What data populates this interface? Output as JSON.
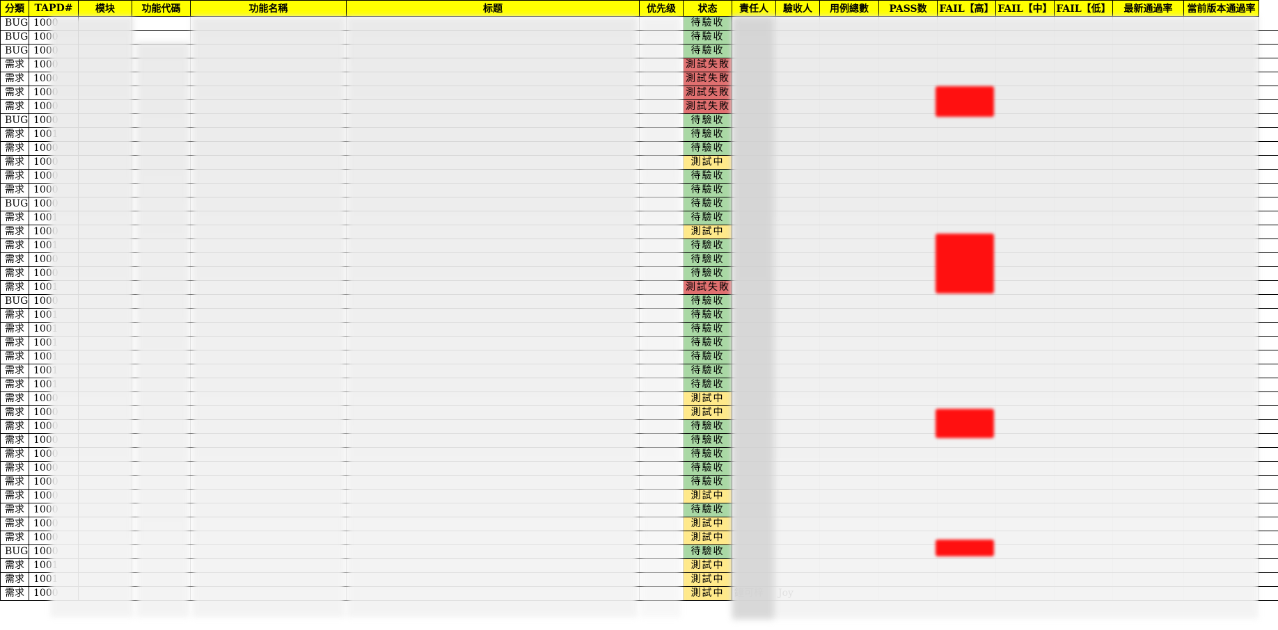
{
  "headers": [
    "分類",
    "TAPD#",
    "模块",
    "功能代碼",
    "功能名稱",
    "标题",
    "优先级",
    "状态",
    "責任人",
    "驗收人",
    "用例總數",
    "PASS数",
    "FAIL【高】",
    "FAIL【中】",
    "FAIL【低】",
    "最新通過率",
    "當前版本通過率"
  ],
  "status_labels": {
    "pending": "待驗收",
    "failed": "測試失敗",
    "testing": "測試中"
  },
  "colors": {
    "header_bg": "#ffff00",
    "pending_bg": "#a9d8a4",
    "failed_bg": "#e07070",
    "testing_bg": "#ffe98a",
    "fail_high_mark": "#ff1010"
  },
  "rows": [
    {
      "cat": "BUG",
      "tapd": "1000",
      "status": "待驗收",
      "s": "pend"
    },
    {
      "cat": "BUG",
      "tapd": "1000",
      "status": "待驗收",
      "s": "pend"
    },
    {
      "cat": "BUG",
      "tapd": "1000",
      "status": "待驗收",
      "s": "pend"
    },
    {
      "cat": "需求",
      "tapd": "1000",
      "status": "測試失敗",
      "s": "fail"
    },
    {
      "cat": "需求",
      "tapd": "1000",
      "status": "測試失敗",
      "s": "fail"
    },
    {
      "cat": "需求",
      "tapd": "1000",
      "status": "測試失敗",
      "s": "fail"
    },
    {
      "cat": "需求",
      "tapd": "1000",
      "status": "測試失敗",
      "s": "fail"
    },
    {
      "cat": "BUG",
      "tapd": "1000",
      "status": "待驗收",
      "s": "pend"
    },
    {
      "cat": "需求",
      "tapd": "1001",
      "status": "待驗收",
      "s": "pend"
    },
    {
      "cat": "需求",
      "tapd": "1000",
      "status": "待驗收",
      "s": "pend"
    },
    {
      "cat": "需求",
      "tapd": "1000",
      "status": "測試中",
      "s": "test"
    },
    {
      "cat": "需求",
      "tapd": "1000",
      "status": "待驗收",
      "s": "pend"
    },
    {
      "cat": "需求",
      "tapd": "1000",
      "status": "待驗收",
      "s": "pend"
    },
    {
      "cat": "BUG",
      "tapd": "1000",
      "status": "待驗收",
      "s": "pend"
    },
    {
      "cat": "需求",
      "tapd": "1001",
      "status": "待驗收",
      "s": "pend"
    },
    {
      "cat": "需求",
      "tapd": "1000",
      "status": "測試中",
      "s": "test"
    },
    {
      "cat": "需求",
      "tapd": "1001",
      "status": "待驗收",
      "s": "pend"
    },
    {
      "cat": "需求",
      "tapd": "1000",
      "status": "待驗收",
      "s": "pend"
    },
    {
      "cat": "需求",
      "tapd": "1000",
      "status": "待驗收",
      "s": "pend"
    },
    {
      "cat": "需求",
      "tapd": "1001",
      "status": "測試失敗",
      "s": "fail"
    },
    {
      "cat": "BUG",
      "tapd": "1000",
      "status": "待驗收",
      "s": "pend"
    },
    {
      "cat": "需求",
      "tapd": "1001",
      "status": "待驗收",
      "s": "pend"
    },
    {
      "cat": "需求",
      "tapd": "1001",
      "status": "待驗收",
      "s": "pend"
    },
    {
      "cat": "需求",
      "tapd": "1001",
      "status": "待驗收",
      "s": "pend"
    },
    {
      "cat": "需求",
      "tapd": "1001",
      "status": "待驗收",
      "s": "pend"
    },
    {
      "cat": "需求",
      "tapd": "1001",
      "status": "待驗收",
      "s": "pend"
    },
    {
      "cat": "需求",
      "tapd": "1001",
      "status": "待驗收",
      "s": "pend"
    },
    {
      "cat": "需求",
      "tapd": "1000",
      "status": "測試中",
      "s": "test"
    },
    {
      "cat": "需求",
      "tapd": "1000",
      "status": "測試中",
      "s": "test"
    },
    {
      "cat": "需求",
      "tapd": "1000",
      "status": "待驗收",
      "s": "pend"
    },
    {
      "cat": "需求",
      "tapd": "1000",
      "status": "待驗收",
      "s": "pend"
    },
    {
      "cat": "需求",
      "tapd": "1000",
      "status": "待驗收",
      "s": "pend"
    },
    {
      "cat": "需求",
      "tapd": "1000",
      "status": "待驗收",
      "s": "pend"
    },
    {
      "cat": "需求",
      "tapd": "1000",
      "status": "待驗收",
      "s": "pend"
    },
    {
      "cat": "需求",
      "tapd": "1000",
      "status": "測試中",
      "s": "test"
    },
    {
      "cat": "需求",
      "tapd": "1000",
      "status": "待驗收",
      "s": "pend"
    },
    {
      "cat": "需求",
      "tapd": "1000",
      "status": "測試中",
      "s": "test"
    },
    {
      "cat": "需求",
      "tapd": "1000",
      "status": "測試中",
      "s": "test"
    },
    {
      "cat": "BUG",
      "tapd": "1000",
      "status": "待驗收",
      "s": "pend"
    },
    {
      "cat": "需求",
      "tapd": "1001",
      "status": "測試中",
      "s": "test"
    },
    {
      "cat": "需求",
      "tapd": "1001",
      "status": "測試中",
      "s": "test"
    },
    {
      "cat": "需求",
      "tapd": "1000",
      "status": "測試中",
      "s": "test",
      "owner": "鐘可梓",
      "acceptor": "Joy"
    }
  ]
}
